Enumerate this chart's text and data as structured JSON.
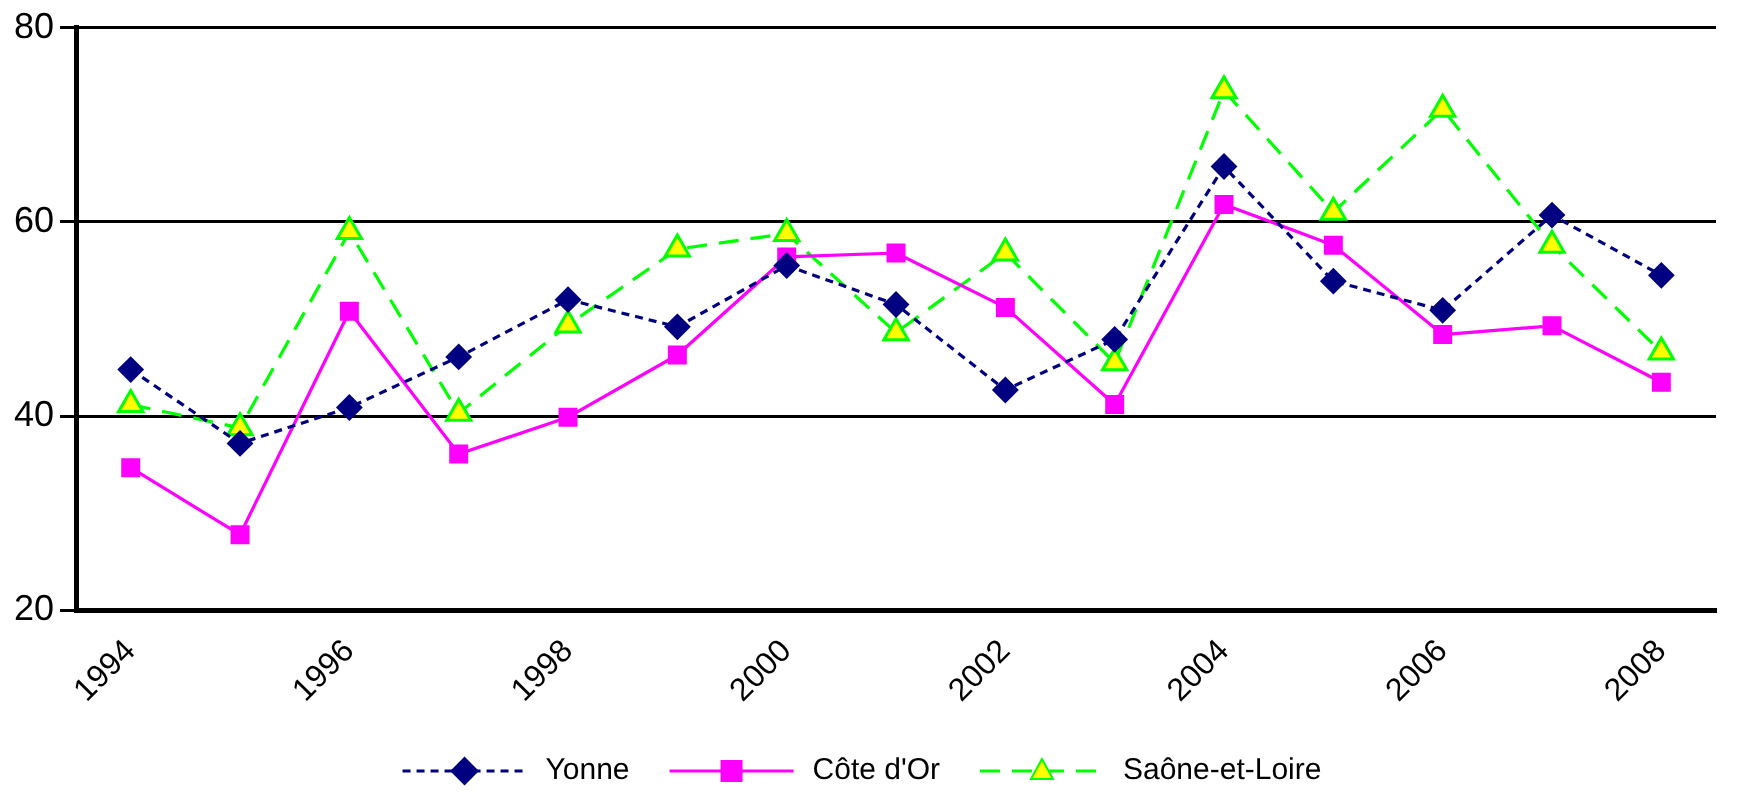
{
  "chart_data": {
    "type": "line",
    "categories": [
      "1994",
      null,
      "1996",
      null,
      "1998",
      null,
      "2000",
      null,
      "2002",
      null,
      "2004",
      null,
      "2006",
      null,
      "2008"
    ],
    "series": [
      {
        "name": "Yonne",
        "color": "#000080",
        "marker": "diamond",
        "line_style": "dotted",
        "values": [
          44.8,
          37.2,
          40.9,
          46.1,
          52.0,
          49.2,
          55.5,
          51.5,
          42.7,
          47.9,
          65.7,
          53.9,
          50.9,
          60.7,
          54.5
        ]
      },
      {
        "name": "Côte d'Or",
        "color": "#ff00ff",
        "marker": "square",
        "line_style": "solid",
        "values": [
          34.7,
          27.8,
          50.8,
          36.1,
          39.9,
          46.3,
          56.4,
          56.8,
          51.2,
          41.2,
          61.8,
          57.6,
          48.4,
          49.3,
          43.5
        ]
      },
      {
        "name": "Saône-et-Loire",
        "color": "#00ff00",
        "marker": "triangle",
        "line_style": "dashed",
        "values": [
          41.2,
          38.8,
          59.0,
          40.3,
          49.4,
          57.2,
          58.8,
          48.6,
          56.8,
          45.5,
          73.5,
          61.0,
          71.6,
          57.6,
          46.6
        ]
      }
    ],
    "ylim": [
      20,
      80
    ],
    "yticks": [
      20,
      40,
      60,
      80
    ],
    "grid": "y",
    "legend": "bottom"
  }
}
